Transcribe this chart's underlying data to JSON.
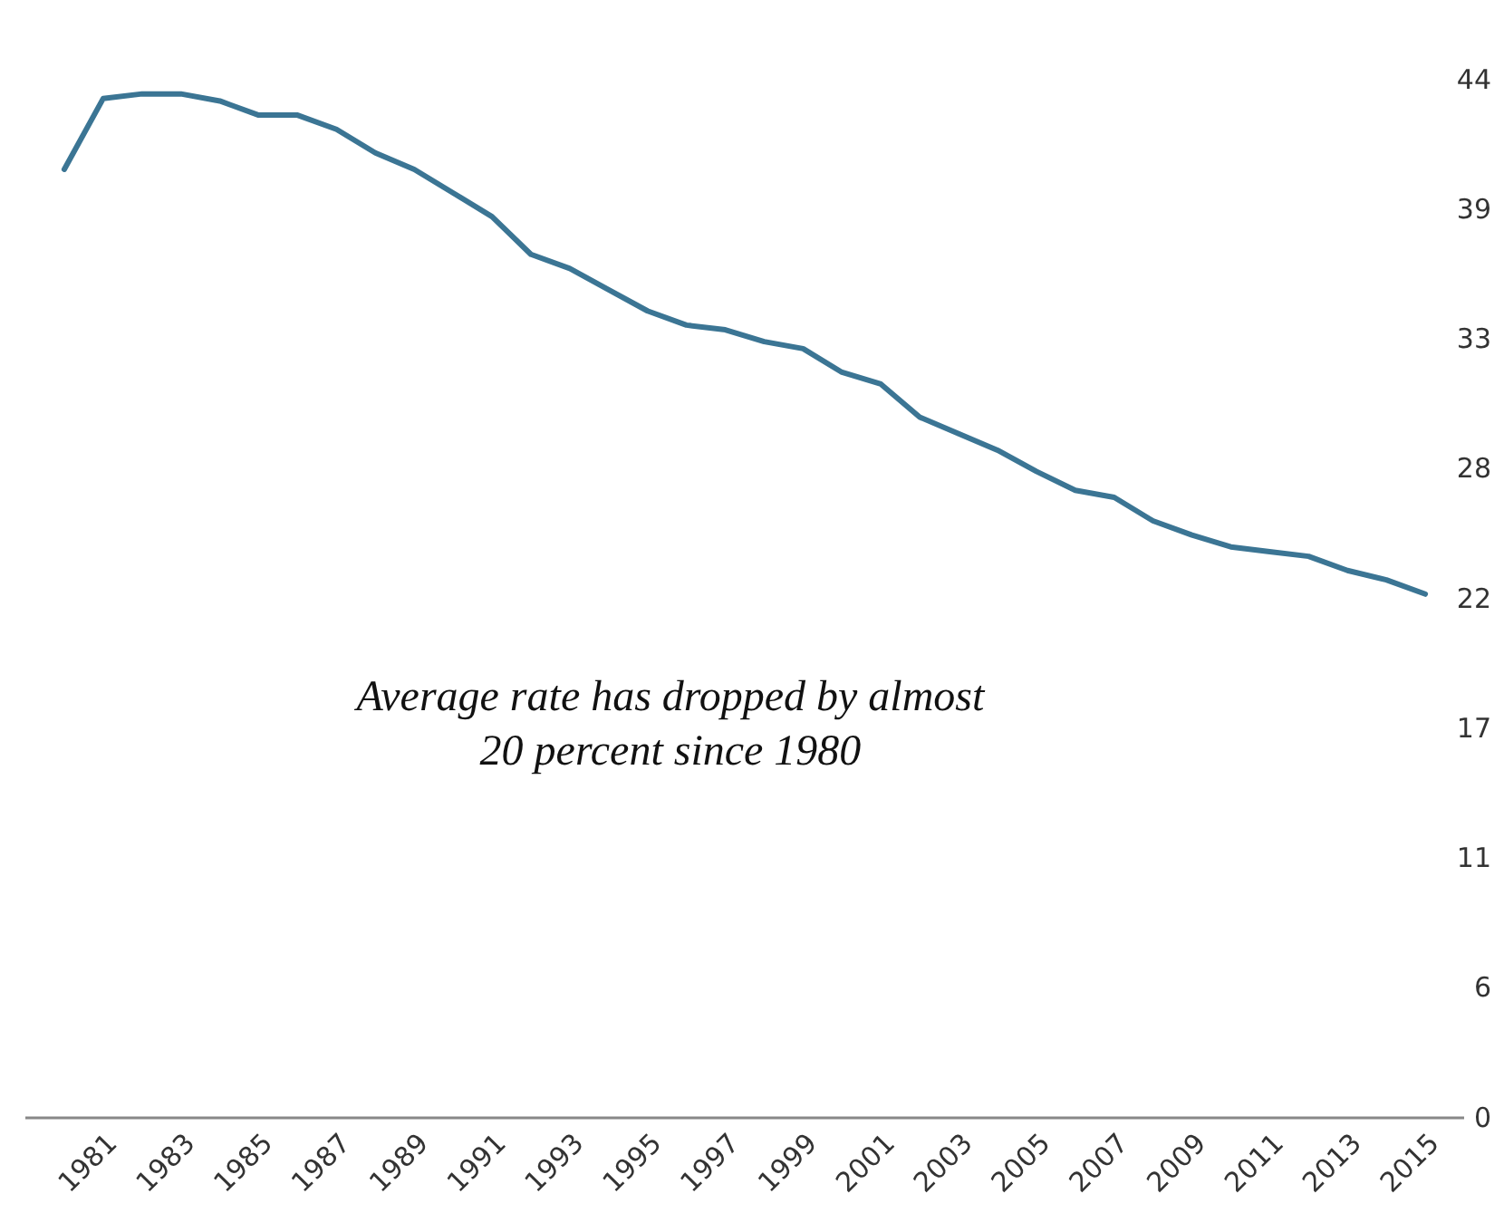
{
  "chart_data": {
    "type": "line",
    "x": [
      1980,
      1981,
      1982,
      1983,
      1984,
      1985,
      1986,
      1987,
      1988,
      1989,
      1990,
      1991,
      1992,
      1993,
      1994,
      1995,
      1996,
      1997,
      1998,
      1999,
      2000,
      2001,
      2002,
      2003,
      2004,
      2005,
      2006,
      2007,
      2008,
      2009,
      2010,
      2011,
      2012,
      2013,
      2014,
      2015
    ],
    "series": [
      {
        "color": "#3b7594",
        "values": [
          40.2,
          43.2,
          43.4,
          43.4,
          43.1,
          42.5,
          42.5,
          41.9,
          40.9,
          40.2,
          39.2,
          38.2,
          36.6,
          36.0,
          35.1,
          34.2,
          33.6,
          33.4,
          32.9,
          32.6,
          31.6,
          31.1,
          29.7,
          29.0,
          28.3,
          27.4,
          26.6,
          26.3,
          25.3,
          24.7,
          24.2,
          24.0,
          23.8,
          23.2,
          22.8,
          22.2
        ]
      }
    ],
    "xlim": [
      1979,
      2016
    ],
    "xticks": [
      1981,
      1983,
      1985,
      1987,
      1989,
      1991,
      1993,
      1995,
      1997,
      1999,
      2001,
      2003,
      2005,
      2007,
      2009,
      2011,
      2013,
      2015
    ],
    "ylim": [
      0,
      44
    ],
    "yticks": [
      0,
      {
        "value": 5.5,
        "label": "6"
      },
      11,
      {
        "value": 16.5,
        "label": "17"
      },
      22,
      {
        "value": 27.5,
        "label": "28"
      },
      33,
      {
        "value": 38.5,
        "label": "39"
      },
      44
    ],
    "grid": false,
    "marker": "none",
    "line_style": "solid",
    "annotations": [
      "Average rate has dropped by almost 20 percent since 1980"
    ]
  }
}
